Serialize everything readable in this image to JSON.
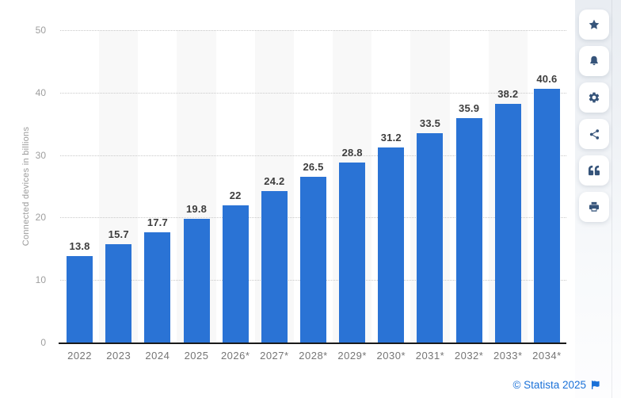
{
  "chart_data": {
    "type": "bar",
    "title": "",
    "xlabel": "",
    "ylabel": "Connected devices in billions",
    "categories": [
      "2022",
      "2023",
      "2024",
      "2025",
      "2026*",
      "2027*",
      "2028*",
      "2029*",
      "2030*",
      "2031*",
      "2032*",
      "2033*",
      "2034*"
    ],
    "values": [
      13.8,
      15.7,
      17.7,
      19.8,
      22,
      24.2,
      26.5,
      28.8,
      31.2,
      33.5,
      35.9,
      38.2,
      40.6
    ],
    "value_labels": [
      "13.8",
      "15.7",
      "17.7",
      "19.8",
      "22",
      "24.2",
      "26.5",
      "28.8",
      "31.2",
      "33.5",
      "35.9",
      "38.2",
      "40.6"
    ],
    "ylim": [
      0,
      50
    ],
    "yticks": [
      0,
      10,
      20,
      30,
      40,
      50
    ],
    "grid": "horizontal-dotted",
    "legend": "none",
    "bar_color": "#2a73d5",
    "band_color": "#f8f8f8"
  },
  "toolbar": {
    "icon_color": "#36547a",
    "buttons": [
      {
        "id": "favorite",
        "icon": "star-icon"
      },
      {
        "id": "notifications",
        "icon": "bell-icon"
      },
      {
        "id": "settings",
        "icon": "gear-icon"
      },
      {
        "id": "share",
        "icon": "share-icon"
      },
      {
        "id": "cite",
        "icon": "quote-icon"
      },
      {
        "id": "print",
        "icon": "printer-icon"
      }
    ]
  },
  "footer": {
    "attribution": "© Statista 2025",
    "link_color": "#1a71d8"
  }
}
